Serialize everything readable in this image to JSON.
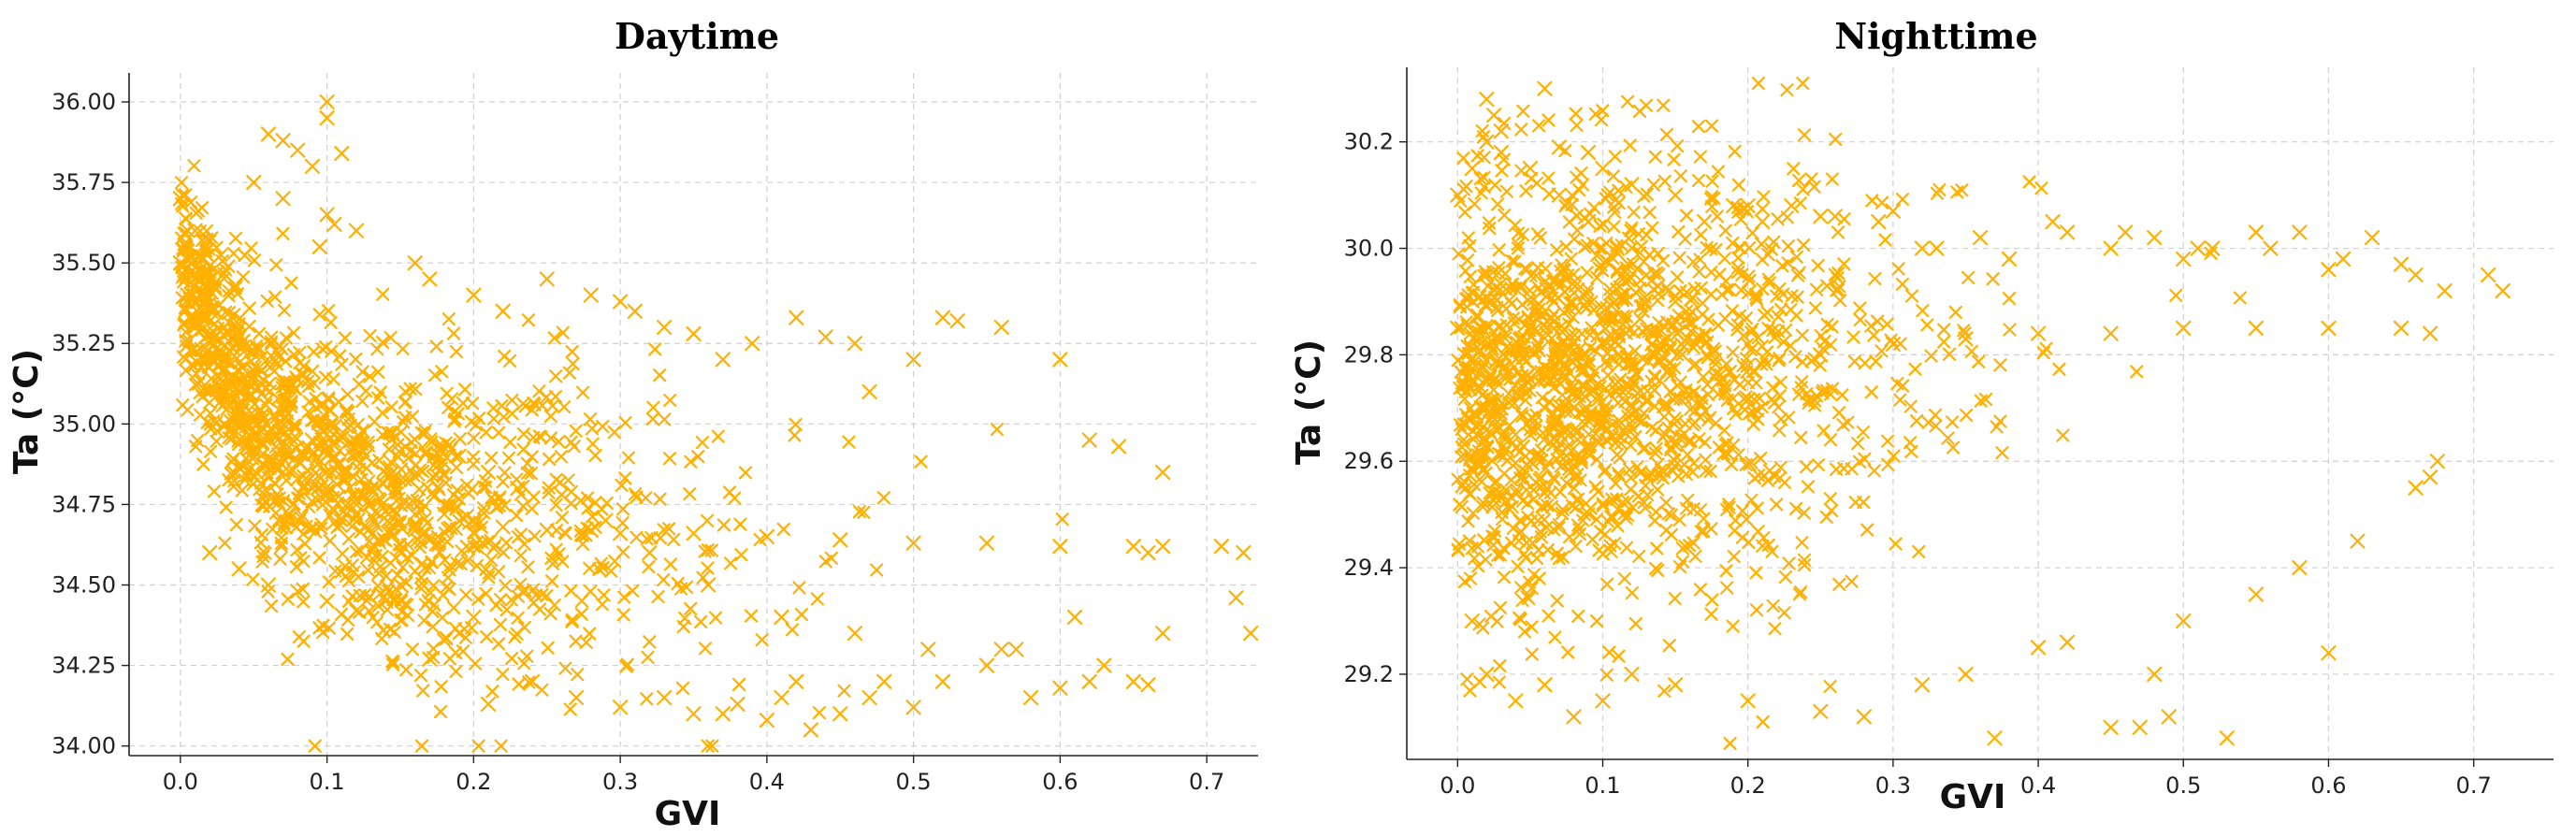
{
  "colors": {
    "marker": "#FFB000",
    "axis": "#222222",
    "grid": "#d0d0d0"
  },
  "marker_icon": "x-marker",
  "chart_data": [
    {
      "type": "scatter",
      "title": "Daytime",
      "xlabel": "GVI",
      "ylabel": "Ta (°C)",
      "xlim": [
        -0.035,
        0.735
      ],
      "ylim": [
        33.97,
        36.09
      ],
      "xticks": [
        0.0,
        0.1,
        0.2,
        0.3,
        0.4,
        0.5,
        0.6,
        0.7
      ],
      "xtick_labels": [
        "0.0",
        "0.1",
        "0.2",
        "0.3",
        "0.4",
        "0.5",
        "0.6",
        "0.7"
      ],
      "yticks": [
        34.0,
        34.25,
        34.5,
        34.75,
        35.0,
        35.25,
        35.5,
        35.75,
        36.0
      ],
      "ytick_labels": [
        "34.00",
        "34.25",
        "34.50",
        "34.75",
        "35.00",
        "35.25",
        "35.50",
        "35.75",
        "36.00"
      ],
      "grid": true,
      "marker": "x",
      "series": [
        {
          "x": [
            0.0,
            0.005,
            0.01,
            0.015,
            0.02,
            0.03,
            0.04,
            0.05,
            0.06,
            0.07,
            0.08,
            0.09,
            0.1,
            0.12,
            0.14,
            0.16,
            0.18,
            0.2,
            0.22,
            0.25,
            0.28,
            0.3,
            0.35,
            0.4,
            0.45,
            0.5,
            0.55,
            0.6,
            0.65,
            0.67,
            0.0,
            0.01,
            0.02,
            0.03,
            0.05,
            0.07,
            0.09,
            0.11,
            0.13,
            0.15,
            0.17,
            0.19,
            0.21,
            0.23,
            0.26,
            0.29,
            0.32,
            0.36,
            0.41,
            0.46,
            0.51,
            0.56,
            0.61,
            0.66,
            0.06,
            0.07,
            0.08,
            0.09,
            0.1,
            0.1,
            0.11,
            0.12,
            0.05,
            0.07,
            0.095,
            0.1,
            0.105,
            0.16,
            0.17,
            0.2,
            0.22,
            0.25,
            0.28,
            0.3,
            0.31,
            0.33,
            0.35,
            0.37,
            0.39,
            0.42,
            0.44,
            0.46,
            0.47,
            0.5,
            0.52,
            0.53,
            0.56,
            0.6,
            0.62,
            0.64,
            0.67,
            0.02,
            0.04,
            0.06,
            0.08,
            0.1,
            0.12,
            0.14,
            0.15,
            0.17,
            0.2,
            0.21,
            0.24,
            0.27,
            0.3,
            0.33,
            0.35,
            0.37,
            0.38,
            0.4,
            0.41,
            0.42,
            0.43,
            0.45,
            0.47,
            0.48,
            0.5,
            0.52,
            0.55,
            0.57,
            0.58,
            0.6,
            0.62,
            0.63,
            0.65,
            0.66,
            0.67,
            0.71,
            0.72,
            0.73,
            0.725
          ],
          "y": [
            35.5,
            35.4,
            35.3,
            35.2,
            35.1,
            35.0,
            34.95,
            34.9,
            34.88,
            34.85,
            34.83,
            34.8,
            34.78,
            34.75,
            34.73,
            34.72,
            34.72,
            34.7,
            34.68,
            34.67,
            34.67,
            34.66,
            34.66,
            34.65,
            34.64,
            34.63,
            34.63,
            34.62,
            34.62,
            34.62,
            35.7,
            35.6,
            35.45,
            35.3,
            35.15,
            35.05,
            34.95,
            34.85,
            34.8,
            34.75,
            34.95,
            34.9,
            34.85,
            34.8,
            34.78,
            34.7,
            34.6,
            34.5,
            34.4,
            34.35,
            34.3,
            34.3,
            34.4,
            34.6,
            35.9,
            35.88,
            35.85,
            35.8,
            35.95,
            36.0,
            35.84,
            35.6,
            35.75,
            35.7,
            35.55,
            35.65,
            35.62,
            35.5,
            35.45,
            35.4,
            35.35,
            35.45,
            35.4,
            35.38,
            35.35,
            35.3,
            35.28,
            35.2,
            35.25,
            35.33,
            35.27,
            35.25,
            35.1,
            35.2,
            35.33,
            35.32,
            35.3,
            35.2,
            34.95,
            34.93,
            34.85,
            34.6,
            34.55,
            34.5,
            34.48,
            34.45,
            34.42,
            34.45,
            34.5,
            34.27,
            34.4,
            34.13,
            34.2,
            34.15,
            34.12,
            34.15,
            34.1,
            34.1,
            34.13,
            34.08,
            34.15,
            34.2,
            34.05,
            34.1,
            34.15,
            34.2,
            34.12,
            34.2,
            34.25,
            34.3,
            34.15,
            34.18,
            34.2,
            34.25,
            34.2,
            34.19,
            34.35,
            34.62,
            34.46,
            34.35,
            34.6
          ]
        }
      ]
    },
    {
      "type": "scatter",
      "title": "Nighttime",
      "xlabel": "GVI",
      "ylabel": "Ta (°C)",
      "xlim": [
        -0.035,
        0.755
      ],
      "ylim": [
        29.04,
        30.34
      ],
      "xticks": [
        0.0,
        0.1,
        0.2,
        0.3,
        0.4,
        0.5,
        0.6,
        0.7
      ],
      "xtick_labels": [
        "0.0",
        "0.1",
        "0.2",
        "0.3",
        "0.4",
        "0.5",
        "0.6",
        "0.7"
      ],
      "yticks": [
        29.2,
        29.4,
        29.6,
        29.8,
        30.0,
        30.2
      ],
      "ytick_labels": [
        "29.2",
        "29.4",
        "29.6",
        "29.8",
        "30.0",
        "30.2"
      ],
      "grid": true,
      "marker": "x",
      "series": [
        {
          "x": [
            0.0,
            0.005,
            0.01,
            0.02,
            0.03,
            0.04,
            0.05,
            0.06,
            0.08,
            0.1,
            0.12,
            0.15,
            0.18,
            0.2,
            0.25,
            0.3,
            0.35,
            0.4,
            0.45,
            0.5,
            0.55,
            0.6,
            0.65,
            0.67,
            0.0,
            0.01,
            0.02,
            0.03,
            0.05,
            0.07,
            0.09,
            0.11,
            0.13,
            0.15,
            0.17,
            0.19,
            0.21,
            0.23,
            0.26,
            0.29,
            0.32,
            0.36,
            0.41,
            0.46,
            0.51,
            0.56,
            0.61,
            0.66,
            0.02,
            0.025,
            0.03,
            0.06,
            0.07,
            0.09,
            0.1,
            0.12,
            0.15,
            0.2,
            0.25,
            0.3,
            0.33,
            0.38,
            0.42,
            0.45,
            0.48,
            0.5,
            0.52,
            0.55,
            0.58,
            0.6,
            0.63,
            0.65,
            0.68,
            0.71,
            0.72,
            0.01,
            0.02,
            0.04,
            0.06,
            0.08,
            0.1,
            0.12,
            0.15,
            0.2,
            0.25,
            0.28,
            0.32,
            0.35,
            0.37,
            0.4,
            0.42,
            0.45,
            0.47,
            0.48,
            0.49,
            0.5,
            0.53,
            0.55,
            0.58,
            0.6,
            0.62,
            0.66,
            0.67,
            0.675
          ],
          "y": [
            29.85,
            29.8,
            29.75,
            29.7,
            29.7,
            29.65,
            29.65,
            29.7,
            29.7,
            29.68,
            29.7,
            29.72,
            29.75,
            29.78,
            29.8,
            29.82,
            29.83,
            29.84,
            29.84,
            29.85,
            29.85,
            29.85,
            29.85,
            29.84,
            30.1,
            30.15,
            30.2,
            30.18,
            30.15,
            30.1,
            30.05,
            30.0,
            29.95,
            29.9,
            30.05,
            30.08,
            30.05,
            30.08,
            30.06,
            30.05,
            30.0,
            30.02,
            30.05,
            30.03,
            30.0,
            30.0,
            29.98,
            29.95,
            30.28,
            30.25,
            30.22,
            30.3,
            30.19,
            30.18,
            30.15,
            30.12,
            30.1,
            30.08,
            30.06,
            30.07,
            30.0,
            29.98,
            30.03,
            30.0,
            30.02,
            29.98,
            30.0,
            30.03,
            30.03,
            29.96,
            30.02,
            29.97,
            29.92,
            29.95,
            29.92,
            29.3,
            29.2,
            29.15,
            29.18,
            29.12,
            29.15,
            29.2,
            29.18,
            29.15,
            29.13,
            29.12,
            29.18,
            29.2,
            29.08,
            29.25,
            29.26,
            29.1,
            29.1,
            29.2,
            29.12,
            29.3,
            29.08,
            29.35,
            29.4,
            29.24,
            29.45,
            29.55,
            29.57,
            29.6
          ]
        }
      ]
    }
  ]
}
